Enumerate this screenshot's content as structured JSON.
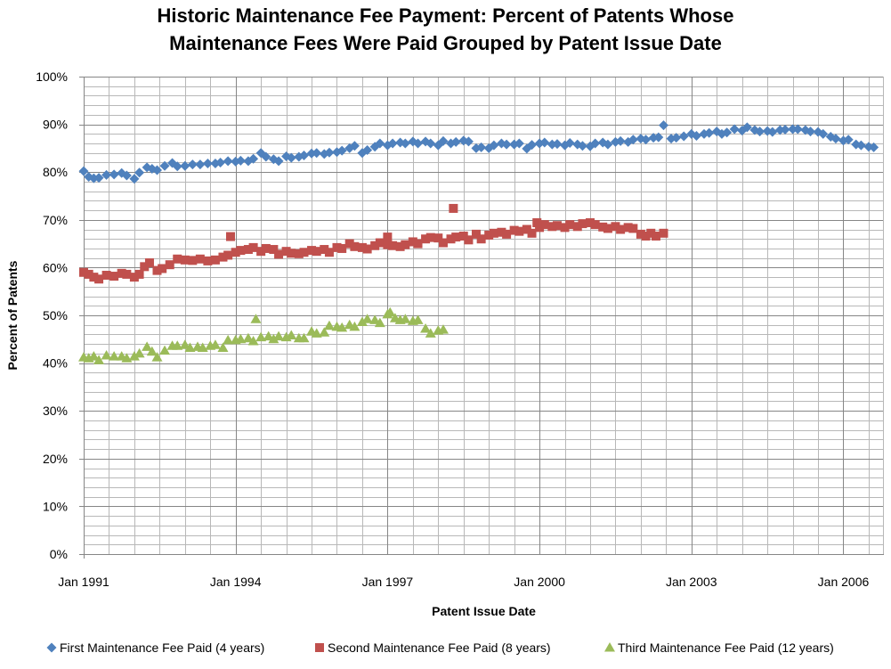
{
  "chart_data": {
    "type": "scatter",
    "title_lines": [
      "Historic Maintenance Fee Payment: Percent of Patents Whose",
      "Maintenance Fees Were Paid Grouped by Patent Issue Date"
    ],
    "xlabel": "Patent Issue Date",
    "ylabel": "Percent of Patents",
    "x_unit": "year",
    "xlim": [
      1991.0,
      2006.8
    ],
    "ylim": [
      0,
      100
    ],
    "x_ticks": [
      {
        "value": 1991,
        "label": "Jan 1991"
      },
      {
        "value": 1994,
        "label": "Jan 1994"
      },
      {
        "value": 1997,
        "label": "Jan 1997"
      },
      {
        "value": 2000,
        "label": "Jan 2000"
      },
      {
        "value": 2003,
        "label": "Jan 2003"
      },
      {
        "value": 2006,
        "label": "Jan 2006"
      }
    ],
    "y_ticks": [
      {
        "value": 0,
        "label": "0%"
      },
      {
        "value": 10,
        "label": "10%"
      },
      {
        "value": 20,
        "label": "20%"
      },
      {
        "value": 30,
        "label": "30%"
      },
      {
        "value": 40,
        "label": "40%"
      },
      {
        "value": 50,
        "label": "50%"
      },
      {
        "value": 60,
        "label": "60%"
      },
      {
        "value": 70,
        "label": "70%"
      },
      {
        "value": 80,
        "label": "80%"
      },
      {
        "value": 90,
        "label": "90%"
      },
      {
        "value": 100,
        "label": "100%"
      }
    ],
    "grid": {
      "major_y_step": 10,
      "minor_y_step": 2,
      "minor_x_step": 0.5,
      "major_x_step": 3
    },
    "legend_position": "bottom",
    "series": [
      {
        "name": "First Maintenance Fee Paid (4 years)",
        "marker": "diamond",
        "color": "#4F81BD",
        "points": [
          [
            1991.0,
            80.2
          ],
          [
            1991.1,
            79.0
          ],
          [
            1991.2,
            78.7
          ],
          [
            1991.3,
            78.8
          ],
          [
            1991.45,
            79.4
          ],
          [
            1991.6,
            79.5
          ],
          [
            1991.75,
            79.8
          ],
          [
            1991.85,
            79.3
          ],
          [
            1992.0,
            78.6
          ],
          [
            1992.1,
            79.9
          ],
          [
            1992.25,
            81.0
          ],
          [
            1992.35,
            80.7
          ],
          [
            1992.45,
            80.4
          ],
          [
            1992.6,
            81.3
          ],
          [
            1992.75,
            81.9
          ],
          [
            1992.85,
            81.2
          ],
          [
            1993.0,
            81.3
          ],
          [
            1993.15,
            81.6
          ],
          [
            1993.3,
            81.6
          ],
          [
            1993.45,
            81.8
          ],
          [
            1993.6,
            81.8
          ],
          [
            1993.7,
            82.0
          ],
          [
            1993.85,
            82.3
          ],
          [
            1994.0,
            82.2
          ],
          [
            1994.1,
            82.4
          ],
          [
            1994.25,
            82.3
          ],
          [
            1994.35,
            82.8
          ],
          [
            1994.5,
            84.0
          ],
          [
            1994.6,
            83.2
          ],
          [
            1994.75,
            82.7
          ],
          [
            1994.85,
            82.3
          ],
          [
            1995.0,
            83.3
          ],
          [
            1995.1,
            83.0
          ],
          [
            1995.25,
            83.2
          ],
          [
            1995.35,
            83.5
          ],
          [
            1995.5,
            83.9
          ],
          [
            1995.6,
            84.0
          ],
          [
            1995.75,
            83.8
          ],
          [
            1995.85,
            84.1
          ],
          [
            1996.0,
            84.2
          ],
          [
            1996.1,
            84.5
          ],
          [
            1996.25,
            85.0
          ],
          [
            1996.35,
            85.5
          ],
          [
            1996.5,
            84.0
          ],
          [
            1996.6,
            84.6
          ],
          [
            1996.75,
            85.3
          ],
          [
            1996.85,
            86.0
          ],
          [
            1997.0,
            85.6
          ],
          [
            1997.1,
            86.0
          ],
          [
            1997.25,
            86.2
          ],
          [
            1997.35,
            86.0
          ],
          [
            1997.5,
            86.4
          ],
          [
            1997.6,
            86.0
          ],
          [
            1997.75,
            86.4
          ],
          [
            1997.85,
            86.0
          ],
          [
            1998.0,
            85.6
          ],
          [
            1998.1,
            86.5
          ],
          [
            1998.25,
            86.0
          ],
          [
            1998.35,
            86.3
          ],
          [
            1998.5,
            86.6
          ],
          [
            1998.6,
            86.4
          ],
          [
            1998.75,
            85.0
          ],
          [
            1998.85,
            85.2
          ],
          [
            1999.0,
            85.0
          ],
          [
            1999.1,
            85.6
          ],
          [
            1999.25,
            86.0
          ],
          [
            1999.35,
            85.8
          ],
          [
            1999.5,
            85.8
          ],
          [
            1999.6,
            86.0
          ],
          [
            1999.75,
            84.9
          ],
          [
            1999.85,
            85.7
          ],
          [
            2000.0,
            86.0
          ],
          [
            2000.1,
            86.2
          ],
          [
            2000.25,
            85.8
          ],
          [
            2000.35,
            85.9
          ],
          [
            2000.5,
            85.6
          ],
          [
            2000.6,
            86.1
          ],
          [
            2000.75,
            85.8
          ],
          [
            2000.85,
            85.5
          ],
          [
            2001.0,
            85.4
          ],
          [
            2001.1,
            86.0
          ],
          [
            2001.25,
            86.2
          ],
          [
            2001.35,
            85.8
          ],
          [
            2001.5,
            86.3
          ],
          [
            2001.6,
            86.5
          ],
          [
            2001.75,
            86.3
          ],
          [
            2001.85,
            86.8
          ],
          [
            2002.0,
            87.0
          ],
          [
            2002.1,
            86.8
          ],
          [
            2002.25,
            87.2
          ],
          [
            2002.35,
            87.3
          ],
          [
            2002.45,
            89.8
          ],
          [
            2002.6,
            87.0
          ],
          [
            2002.7,
            87.2
          ],
          [
            2002.85,
            87.5
          ],
          [
            2003.0,
            88.0
          ],
          [
            2003.1,
            87.6
          ],
          [
            2003.25,
            88.0
          ],
          [
            2003.35,
            88.2
          ],
          [
            2003.5,
            88.5
          ],
          [
            2003.6,
            88.0
          ],
          [
            2003.7,
            88.3
          ],
          [
            2003.85,
            89.0
          ],
          [
            2004.0,
            88.7
          ],
          [
            2004.1,
            89.4
          ],
          [
            2004.25,
            88.8
          ],
          [
            2004.35,
            88.5
          ],
          [
            2004.5,
            88.6
          ],
          [
            2004.6,
            88.4
          ],
          [
            2004.75,
            88.8
          ],
          [
            2004.85,
            88.9
          ],
          [
            2005.0,
            89.0
          ],
          [
            2005.1,
            89.0
          ],
          [
            2005.25,
            88.8
          ],
          [
            2005.35,
            88.5
          ],
          [
            2005.5,
            88.4
          ],
          [
            2005.6,
            88.0
          ],
          [
            2005.75,
            87.4
          ],
          [
            2005.85,
            87.0
          ],
          [
            2006.0,
            86.6
          ],
          [
            2006.1,
            86.8
          ],
          [
            2006.25,
            85.8
          ],
          [
            2006.35,
            85.6
          ],
          [
            2006.5,
            85.3
          ],
          [
            2006.6,
            85.2
          ]
        ]
      },
      {
        "name": "Second Maintenance Fee Paid (8 years)",
        "marker": "square",
        "color": "#C0504D",
        "points": [
          [
            1991.0,
            59.0
          ],
          [
            1991.1,
            58.6
          ],
          [
            1991.2,
            58.0
          ],
          [
            1991.3,
            57.6
          ],
          [
            1991.45,
            58.4
          ],
          [
            1991.6,
            58.2
          ],
          [
            1991.75,
            58.8
          ],
          [
            1991.85,
            58.6
          ],
          [
            1992.0,
            58.0
          ],
          [
            1992.1,
            58.6
          ],
          [
            1992.2,
            60.2
          ],
          [
            1992.3,
            61.0
          ],
          [
            1992.45,
            59.4
          ],
          [
            1992.55,
            59.8
          ],
          [
            1992.7,
            60.6
          ],
          [
            1992.85,
            61.8
          ],
          [
            1993.0,
            61.6
          ],
          [
            1993.15,
            61.5
          ],
          [
            1993.3,
            61.8
          ],
          [
            1993.45,
            61.4
          ],
          [
            1993.6,
            61.6
          ],
          [
            1993.75,
            62.2
          ],
          [
            1993.85,
            62.6
          ],
          [
            1994.0,
            63.2
          ],
          [
            1994.1,
            63.6
          ],
          [
            1993.9,
            66.5
          ],
          [
            1994.25,
            63.8
          ],
          [
            1994.35,
            64.2
          ],
          [
            1994.5,
            63.4
          ],
          [
            1994.6,
            64.0
          ],
          [
            1994.75,
            63.8
          ],
          [
            1994.85,
            62.8
          ],
          [
            1995.0,
            63.4
          ],
          [
            1995.1,
            63.0
          ],
          [
            1995.25,
            62.9
          ],
          [
            1995.35,
            63.2
          ],
          [
            1995.5,
            63.6
          ],
          [
            1995.6,
            63.4
          ],
          [
            1995.75,
            63.8
          ],
          [
            1995.85,
            63.2
          ],
          [
            1996.0,
            64.2
          ],
          [
            1996.1,
            64.0
          ],
          [
            1996.25,
            65.0
          ],
          [
            1996.35,
            64.4
          ],
          [
            1996.5,
            64.2
          ],
          [
            1996.6,
            63.9
          ],
          [
            1996.75,
            64.6
          ],
          [
            1996.85,
            65.2
          ],
          [
            1997.0,
            64.8
          ],
          [
            1997.1,
            64.6
          ],
          [
            1997.25,
            64.4
          ],
          [
            1997.35,
            64.8
          ],
          [
            1997.0,
            66.4
          ],
          [
            1997.5,
            65.4
          ],
          [
            1997.6,
            65.0
          ],
          [
            1997.75,
            66.0
          ],
          [
            1997.85,
            66.3
          ],
          [
            1998.0,
            66.2
          ],
          [
            1998.1,
            65.2
          ],
          [
            1998.25,
            66.0
          ],
          [
            1998.35,
            66.4
          ],
          [
            1998.5,
            66.6
          ],
          [
            1998.6,
            65.8
          ],
          [
            1998.75,
            67.0
          ],
          [
            1998.85,
            66.0
          ],
          [
            1999.0,
            66.8
          ],
          [
            1999.1,
            67.2
          ],
          [
            1999.25,
            67.4
          ],
          [
            1998.3,
            72.4
          ],
          [
            1999.35,
            67.0
          ],
          [
            1999.5,
            67.8
          ],
          [
            1999.6,
            67.6
          ],
          [
            1999.75,
            68.0
          ],
          [
            1999.85,
            67.2
          ],
          [
            2000.0,
            68.4
          ],
          [
            2000.1,
            69.0
          ],
          [
            2000.25,
            68.6
          ],
          [
            2000.35,
            68.8
          ],
          [
            2000.5,
            68.4
          ],
          [
            2000.6,
            69.0
          ],
          [
            2000.75,
            68.6
          ],
          [
            2000.85,
            69.2
          ],
          [
            2001.0,
            69.4
          ],
          [
            2001.1,
            69.0
          ],
          [
            2001.25,
            68.5
          ],
          [
            2001.35,
            68.2
          ],
          [
            2001.5,
            68.6
          ],
          [
            2001.6,
            68.0
          ],
          [
            2001.75,
            68.4
          ],
          [
            2001.85,
            68.2
          ],
          [
            2002.0,
            67.0
          ],
          [
            2002.1,
            66.6
          ],
          [
            2002.2,
            67.2
          ],
          [
            2002.3,
            66.6
          ],
          [
            2002.45,
            67.2
          ],
          [
            1999.95,
            69.4
          ]
        ]
      },
      {
        "name": "Third Maintenance Fee Paid (12 years)",
        "marker": "triangle",
        "color": "#9BBB59",
        "points": [
          [
            1991.0,
            41.2
          ],
          [
            1991.1,
            41.0
          ],
          [
            1991.2,
            41.4
          ],
          [
            1991.3,
            40.6
          ],
          [
            1991.45,
            41.6
          ],
          [
            1991.6,
            41.4
          ],
          [
            1991.75,
            41.4
          ],
          [
            1991.85,
            41.0
          ],
          [
            1992.0,
            41.4
          ],
          [
            1992.1,
            42.0
          ],
          [
            1992.25,
            43.4
          ],
          [
            1992.35,
            42.4
          ],
          [
            1992.45,
            41.2
          ],
          [
            1992.6,
            42.6
          ],
          [
            1992.75,
            43.6
          ],
          [
            1992.85,
            43.6
          ],
          [
            1993.0,
            43.8
          ],
          [
            1993.1,
            43.2
          ],
          [
            1993.25,
            43.4
          ],
          [
            1993.35,
            43.2
          ],
          [
            1993.5,
            43.6
          ],
          [
            1993.6,
            43.8
          ],
          [
            1993.75,
            43.2
          ],
          [
            1993.85,
            44.8
          ],
          [
            1994.0,
            44.8
          ],
          [
            1994.1,
            45.0
          ],
          [
            1994.25,
            45.2
          ],
          [
            1994.35,
            44.6
          ],
          [
            1994.5,
            45.4
          ],
          [
            1994.4,
            49.2
          ],
          [
            1994.65,
            45.6
          ],
          [
            1994.75,
            45.0
          ],
          [
            1994.85,
            45.6
          ],
          [
            1995.0,
            45.4
          ],
          [
            1995.1,
            45.8
          ],
          [
            1995.25,
            45.2
          ],
          [
            1995.35,
            45.2
          ],
          [
            1995.5,
            46.6
          ],
          [
            1995.6,
            46.2
          ],
          [
            1995.75,
            46.4
          ],
          [
            1995.85,
            47.8
          ],
          [
            1996.0,
            47.6
          ],
          [
            1996.1,
            47.4
          ],
          [
            1996.25,
            48.0
          ],
          [
            1996.35,
            47.6
          ],
          [
            1996.5,
            48.6
          ],
          [
            1996.6,
            49.2
          ],
          [
            1996.75,
            49.0
          ],
          [
            1996.85,
            48.4
          ],
          [
            1997.0,
            50.2
          ],
          [
            1997.05,
            50.6
          ],
          [
            1997.15,
            49.4
          ],
          [
            1997.25,
            49.0
          ],
          [
            1997.35,
            49.2
          ],
          [
            1997.5,
            48.8
          ],
          [
            1997.6,
            49.0
          ],
          [
            1997.75,
            47.2
          ],
          [
            1997.85,
            46.2
          ],
          [
            1998.0,
            46.8
          ],
          [
            1998.1,
            47.0
          ]
        ]
      }
    ]
  }
}
